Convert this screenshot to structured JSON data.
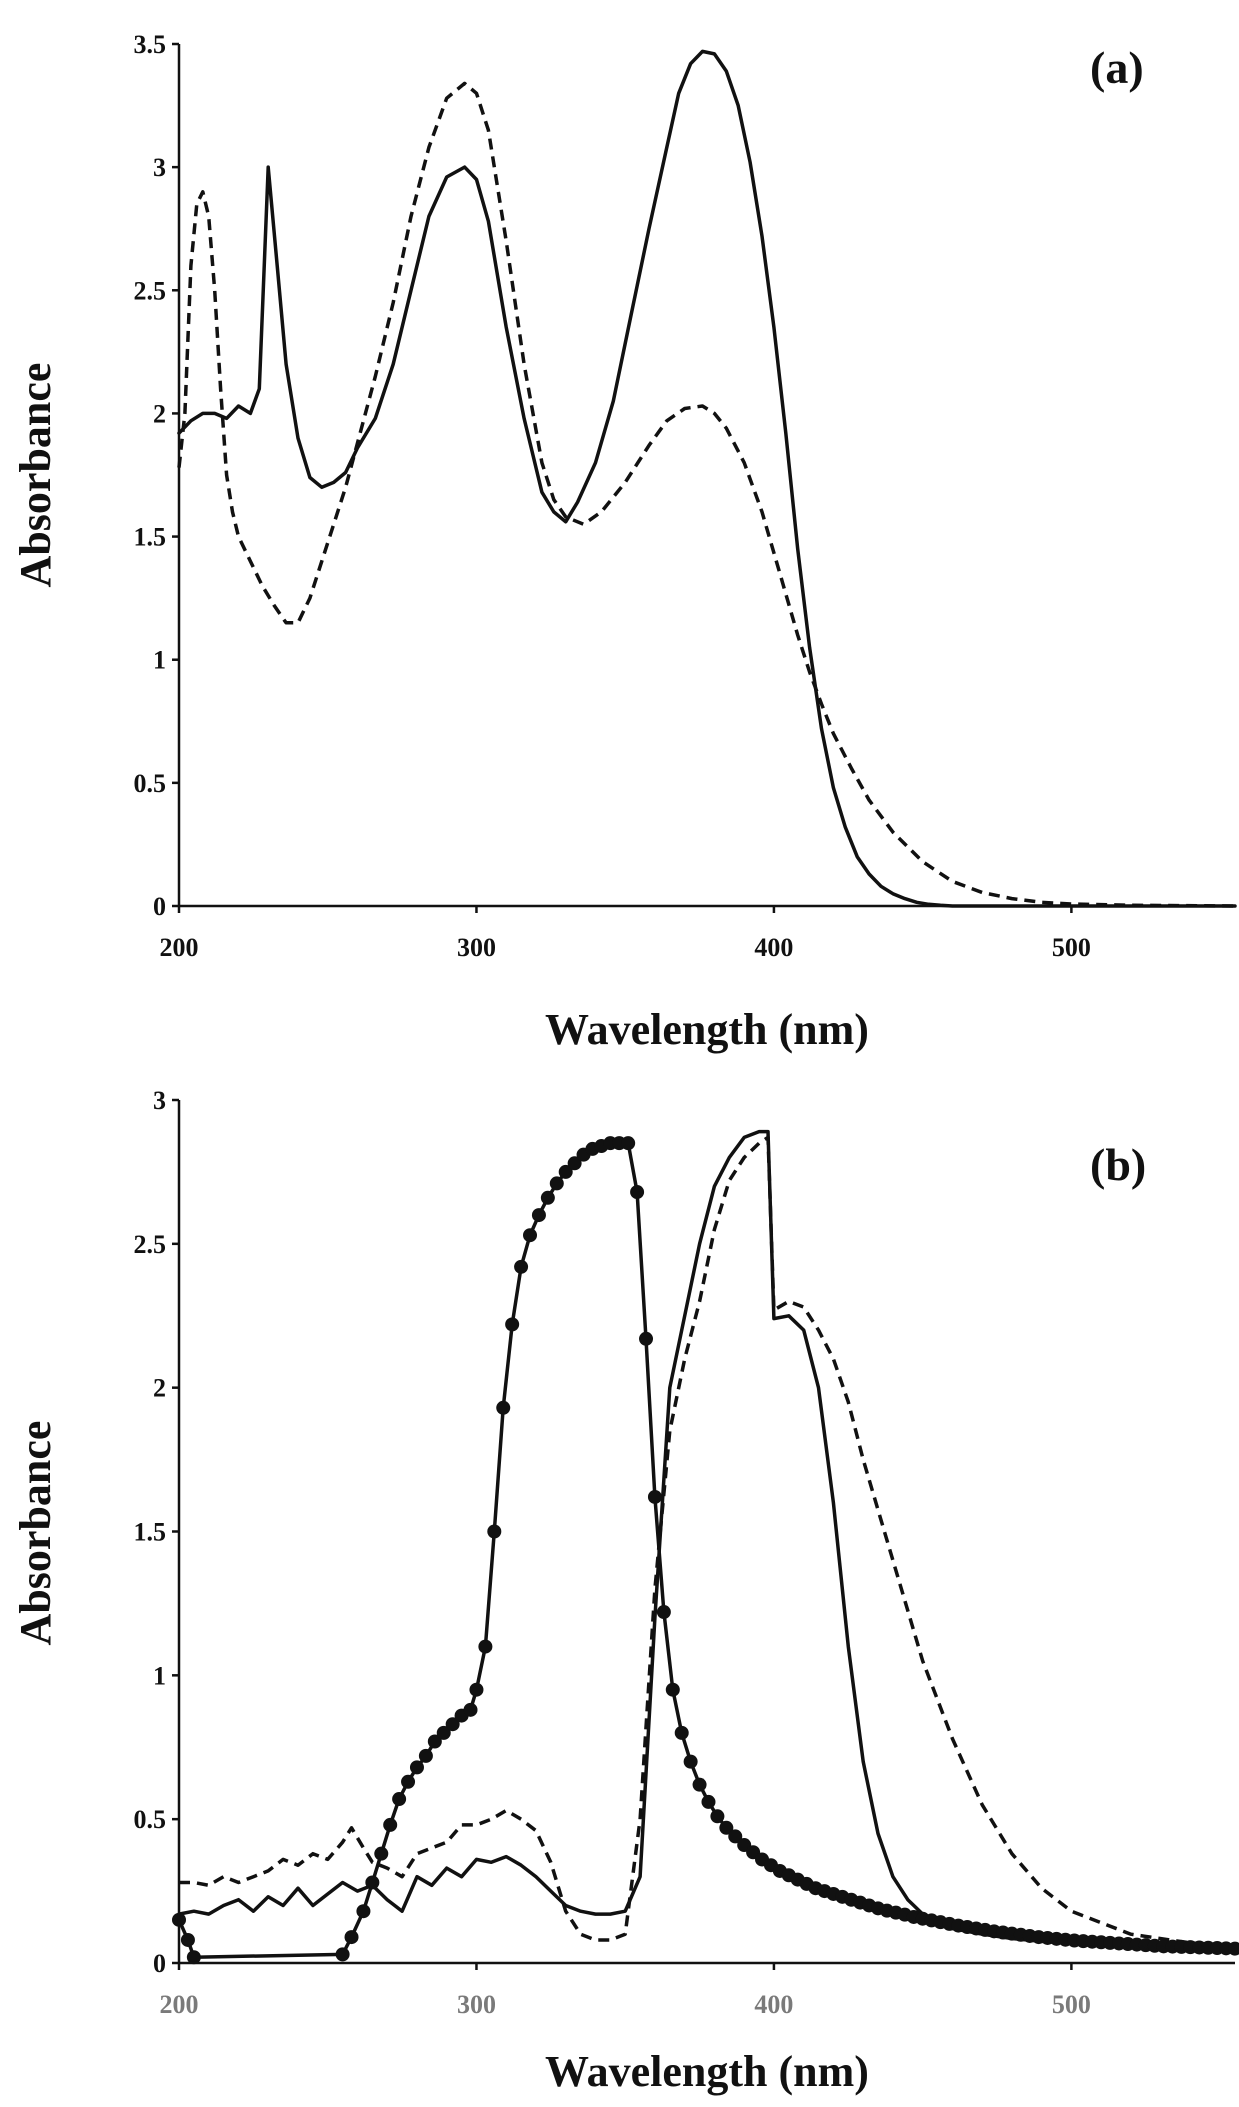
{
  "chart_data": [
    {
      "type": "line",
      "panel_label": "(a)",
      "xlabel": "Wavelength (nm)",
      "ylabel": "Absorbance",
      "xlim": [
        200,
        555
      ],
      "ylim": [
        0,
        3.5
      ],
      "grid": false,
      "x_ticks": [
        "200",
        "300",
        "400",
        "500"
      ],
      "y_ticks": [
        "0",
        "0.5",
        "1",
        "1.5",
        "2",
        "2.5",
        "3",
        "3.5"
      ],
      "tick_color": "#111111",
      "series": [
        {
          "name": "solid",
          "style": "solid",
          "x": [
            200,
            204,
            208,
            212,
            216,
            220,
            224,
            227,
            230,
            233,
            236,
            240,
            244,
            248,
            252,
            256,
            260,
            266,
            272,
            278,
            284,
            290,
            296,
            300,
            304,
            310,
            316,
            322,
            326,
            330,
            334,
            340,
            346,
            352,
            358,
            364,
            368,
            372,
            376,
            380,
            384,
            388,
            392,
            396,
            400,
            404,
            408,
            412,
            416,
            420,
            424,
            428,
            432,
            436,
            440,
            444,
            448,
            452,
            456,
            460,
            480,
            500,
            520,
            555
          ],
          "y": [
            1.92,
            1.97,
            2.0,
            2.0,
            1.98,
            2.03,
            2.0,
            2.1,
            3.0,
            2.6,
            2.2,
            1.9,
            1.74,
            1.7,
            1.72,
            1.76,
            1.86,
            1.98,
            2.2,
            2.5,
            2.8,
            2.96,
            3.0,
            2.95,
            2.78,
            2.35,
            1.98,
            1.68,
            1.6,
            1.56,
            1.64,
            1.8,
            2.05,
            2.4,
            2.75,
            3.08,
            3.3,
            3.42,
            3.47,
            3.46,
            3.39,
            3.25,
            3.02,
            2.72,
            2.35,
            1.92,
            1.45,
            1.05,
            0.72,
            0.48,
            0.32,
            0.2,
            0.13,
            0.08,
            0.05,
            0.03,
            0.015,
            0.007,
            0.003,
            0.0,
            0.0,
            0.0,
            0.0,
            0.0
          ]
        },
        {
          "name": "dashed",
          "style": "dashed",
          "x": [
            200,
            202,
            204,
            206,
            208,
            210,
            212,
            214,
            216,
            218,
            220,
            224,
            228,
            232,
            236,
            240,
            244,
            248,
            252,
            256,
            260,
            266,
            272,
            278,
            284,
            290,
            296,
            300,
            304,
            310,
            316,
            322,
            326,
            330,
            336,
            342,
            350,
            358,
            364,
            370,
            376,
            380,
            384,
            390,
            396,
            402,
            408,
            412,
            416,
            420,
            426,
            432,
            440,
            450,
            460,
            470,
            480,
            490,
            500,
            520,
            555
          ],
          "y": [
            1.78,
            2.0,
            2.6,
            2.85,
            2.9,
            2.8,
            2.5,
            2.1,
            1.75,
            1.6,
            1.5,
            1.4,
            1.3,
            1.22,
            1.15,
            1.15,
            1.25,
            1.4,
            1.55,
            1.7,
            1.88,
            2.15,
            2.45,
            2.8,
            3.08,
            3.28,
            3.34,
            3.3,
            3.15,
            2.7,
            2.2,
            1.8,
            1.65,
            1.58,
            1.55,
            1.6,
            1.72,
            1.87,
            1.97,
            2.02,
            2.03,
            2.0,
            1.94,
            1.8,
            1.6,
            1.35,
            1.1,
            0.95,
            0.82,
            0.7,
            0.56,
            0.43,
            0.3,
            0.18,
            0.1,
            0.055,
            0.03,
            0.015,
            0.008,
            0.003,
            0.0
          ]
        }
      ]
    },
    {
      "type": "line",
      "panel_label": "(b)",
      "xlabel": "Wavelength (nm)",
      "ylabel": "Absorbance",
      "xlim": [
        200,
        555
      ],
      "ylim": [
        0,
        3
      ],
      "grid": false,
      "x_ticks": [
        "200",
        "300",
        "400",
        "500"
      ],
      "y_ticks": [
        "0",
        "0.5",
        "1",
        "1.5",
        "2",
        "2.5",
        "3"
      ],
      "tick_color": "#7a7a7a",
      "series": [
        {
          "name": "solid",
          "style": "solid",
          "x": [
            200,
            205,
            210,
            215,
            220,
            225,
            230,
            235,
            240,
            245,
            250,
            255,
            260,
            265,
            270,
            275,
            280,
            285,
            290,
            295,
            300,
            305,
            310,
            315,
            320,
            325,
            330,
            335,
            340,
            345,
            350,
            355,
            360,
            365,
            370,
            375,
            380,
            385,
            390,
            395,
            398,
            400,
            405,
            410,
            415,
            420,
            425,
            430,
            435,
            440,
            445,
            450,
            460,
            470,
            480,
            490,
            500,
            520,
            540,
            555
          ],
          "y": [
            0.17,
            0.18,
            0.17,
            0.2,
            0.22,
            0.18,
            0.23,
            0.2,
            0.26,
            0.2,
            0.24,
            0.28,
            0.25,
            0.27,
            0.22,
            0.18,
            0.3,
            0.27,
            0.33,
            0.3,
            0.36,
            0.35,
            0.37,
            0.34,
            0.3,
            0.25,
            0.2,
            0.18,
            0.17,
            0.17,
            0.18,
            0.3,
            1.2,
            2.0,
            2.25,
            2.5,
            2.7,
            2.8,
            2.87,
            2.89,
            2.89,
            2.24,
            2.25,
            2.2,
            2.0,
            1.6,
            1.1,
            0.7,
            0.45,
            0.3,
            0.22,
            0.17,
            0.12,
            0.1,
            0.085,
            0.075,
            0.068,
            0.058,
            0.052,
            0.05
          ]
        },
        {
          "name": "dashed",
          "style": "dashed",
          "x": [
            200,
            205,
            210,
            215,
            220,
            225,
            230,
            235,
            240,
            245,
            250,
            255,
            258,
            262,
            265,
            270,
            275,
            280,
            285,
            290,
            295,
            300,
            305,
            310,
            315,
            320,
            325,
            330,
            335,
            340,
            345,
            350,
            355,
            360,
            365,
            370,
            375,
            380,
            385,
            390,
            395,
            398,
            400,
            405,
            410,
            415,
            420,
            425,
            430,
            440,
            450,
            460,
            470,
            480,
            490,
            500,
            520,
            540,
            555
          ],
          "y": [
            0.28,
            0.28,
            0.27,
            0.3,
            0.28,
            0.3,
            0.32,
            0.36,
            0.34,
            0.38,
            0.36,
            0.42,
            0.47,
            0.4,
            0.35,
            0.33,
            0.3,
            0.38,
            0.4,
            0.42,
            0.48,
            0.48,
            0.5,
            0.53,
            0.5,
            0.46,
            0.35,
            0.18,
            0.1,
            0.08,
            0.08,
            0.1,
            0.5,
            1.3,
            1.85,
            2.1,
            2.3,
            2.55,
            2.72,
            2.8,
            2.85,
            2.87,
            2.27,
            2.3,
            2.28,
            2.2,
            2.1,
            1.95,
            1.75,
            1.4,
            1.05,
            0.78,
            0.55,
            0.38,
            0.26,
            0.18,
            0.1,
            0.07,
            0.06
          ]
        },
        {
          "name": "circles",
          "style": "solid-markers",
          "x": [
            200,
            203,
            205,
            255,
            258,
            262,
            265,
            268,
            271,
            274,
            277,
            280,
            283,
            286,
            289,
            292,
            295,
            298,
            300,
            303,
            306,
            309,
            312,
            315,
            318,
            321,
            324,
            327,
            330,
            333,
            336,
            339,
            342,
            345,
            348,
            351,
            354,
            357,
            360,
            363,
            366,
            369,
            372,
            375,
            378,
            381,
            384,
            387,
            390,
            393,
            396,
            399,
            402,
            405,
            408,
            411,
            414,
            417,
            420,
            423,
            426,
            429,
            432,
            435,
            438,
            441,
            444,
            447,
            450,
            453,
            456,
            459,
            462,
            465,
            468,
            471,
            474,
            477,
            480,
            483,
            486,
            489,
            492,
            495,
            498,
            501,
            504,
            507,
            510,
            513,
            516,
            519,
            522,
            525,
            528,
            531,
            534,
            537,
            540,
            543,
            546,
            549,
            552,
            555
          ],
          "y": [
            0.15,
            0.08,
            0.02,
            0.03,
            0.09,
            0.18,
            0.28,
            0.38,
            0.48,
            0.57,
            0.63,
            0.68,
            0.72,
            0.77,
            0.8,
            0.83,
            0.86,
            0.88,
            0.95,
            1.1,
            1.5,
            1.93,
            2.22,
            2.42,
            2.53,
            2.6,
            2.66,
            2.71,
            2.75,
            2.78,
            2.81,
            2.83,
            2.84,
            2.85,
            2.85,
            2.85,
            2.68,
            2.17,
            1.62,
            1.22,
            0.95,
            0.8,
            0.7,
            0.62,
            0.56,
            0.51,
            0.47,
            0.44,
            0.41,
            0.385,
            0.36,
            0.34,
            0.32,
            0.305,
            0.29,
            0.275,
            0.26,
            0.25,
            0.24,
            0.23,
            0.22,
            0.21,
            0.2,
            0.19,
            0.182,
            0.175,
            0.168,
            0.16,
            0.154,
            0.148,
            0.142,
            0.136,
            0.13,
            0.125,
            0.12,
            0.115,
            0.11,
            0.106,
            0.102,
            0.098,
            0.094,
            0.09,
            0.087,
            0.084,
            0.081,
            0.078,
            0.076,
            0.074,
            0.072,
            0.07,
            0.068,
            0.066,
            0.064,
            0.062,
            0.06,
            0.058,
            0.057,
            0.056,
            0.055,
            0.054,
            0.053,
            0.052,
            0.051,
            0.05
          ]
        }
      ]
    }
  ]
}
